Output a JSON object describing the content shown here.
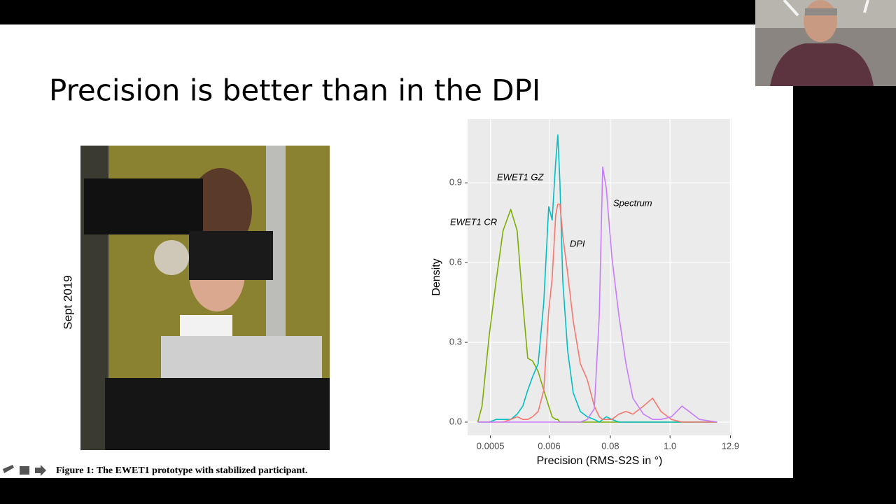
{
  "slide": {
    "title": "Precision is better than in the DPI",
    "side_label": "Sept 2019",
    "caption": "Figure 1:  The EWET1 prototype with stabilized participant."
  },
  "chart_data": {
    "type": "line",
    "x_label": "Precision (RMS-S2S in °)",
    "y_label": "Density",
    "x_scale": "log",
    "grid": true,
    "x": [
      0.000293,
      0.00035,
      0.000471,
      0.000634,
      0.000853,
      0.00118,
      0.00155,
      0.00196,
      0.00242,
      0.00297,
      0.00377,
      0.00478,
      0.00589,
      0.00682,
      0.00793,
      0.00865,
      0.00946,
      0.0107,
      0.0131,
      0.0166,
      0.0224,
      0.0301,
      0.0406,
      0.05,
      0.0579,
      0.0673,
      0.0853,
      0.115,
      0.155,
      0.208,
      0.324,
      0.478,
      0.682,
      1.06,
      1.66,
      2.24,
      3.49,
      7.35
    ],
    "series": [
      {
        "name": "EWET1 CR",
        "color": "#7CAE00",
        "values": [
          0,
          0.06,
          0.32,
          0.53,
          0.72,
          0.8,
          0.72,
          0.45,
          0.24,
          0.23,
          0.19,
          0.12,
          0.06,
          0.02,
          0.01,
          0.01,
          0,
          0,
          0,
          0,
          0,
          0,
          0,
          0,
          0,
          0,
          0,
          0,
          0,
          0,
          0,
          0,
          0,
          0,
          0,
          0,
          0,
          0
        ]
      },
      {
        "name": "EWET1 GZ",
        "color": "#00BFC4",
        "values": [
          0,
          0,
          0,
          0.01,
          0.01,
          0.01,
          0.03,
          0.06,
          0.12,
          0.17,
          0.22,
          0.45,
          0.81,
          0.76,
          0.98,
          1.08,
          0.9,
          0.53,
          0.27,
          0.11,
          0.04,
          0.02,
          0.01,
          0,
          0.01,
          0.02,
          0.01,
          0,
          0,
          0,
          0,
          0,
          0,
          0,
          0,
          0,
          0,
          0
        ]
      },
      {
        "name": "DPI",
        "color": "#F8766D",
        "values": [
          0,
          0,
          0,
          0,
          0,
          0.01,
          0.02,
          0.01,
          0.01,
          0.02,
          0.04,
          0.12,
          0.42,
          0.54,
          0.78,
          0.82,
          0.82,
          0.7,
          0.56,
          0.38,
          0.22,
          0.16,
          0.06,
          0.02,
          0.01,
          0.01,
          0.01,
          0.03,
          0.04,
          0.03,
          0.06,
          0.09,
          0.04,
          0.01,
          0,
          0,
          0,
          0
        ]
      },
      {
        "name": "Spectrum",
        "color": "#C77CFF",
        "values": [
          0,
          0,
          0,
          0,
          0,
          0,
          0,
          0,
          0,
          0,
          0,
          0,
          0,
          0,
          0,
          0,
          0,
          0,
          0,
          0,
          0,
          0.01,
          0.05,
          0.4,
          0.96,
          0.88,
          0.62,
          0.4,
          0.22,
          0.09,
          0.03,
          0.01,
          0.01,
          0.02,
          0.06,
          0.04,
          0.01,
          0
        ]
      }
    ],
    "xlim": [
      0.00019,
      13.5
    ],
    "xticks": [
      0.0005,
      0.006,
      0.08,
      {
        "value": 1,
        "label": "1.0"
      },
      12.9
    ],
    "ylim": [
      -0.05,
      1.14
    ],
    "yticks": [
      {
        "value": 0,
        "label": "0.0"
      },
      0.3,
      0.6,
      0.9
    ]
  }
}
